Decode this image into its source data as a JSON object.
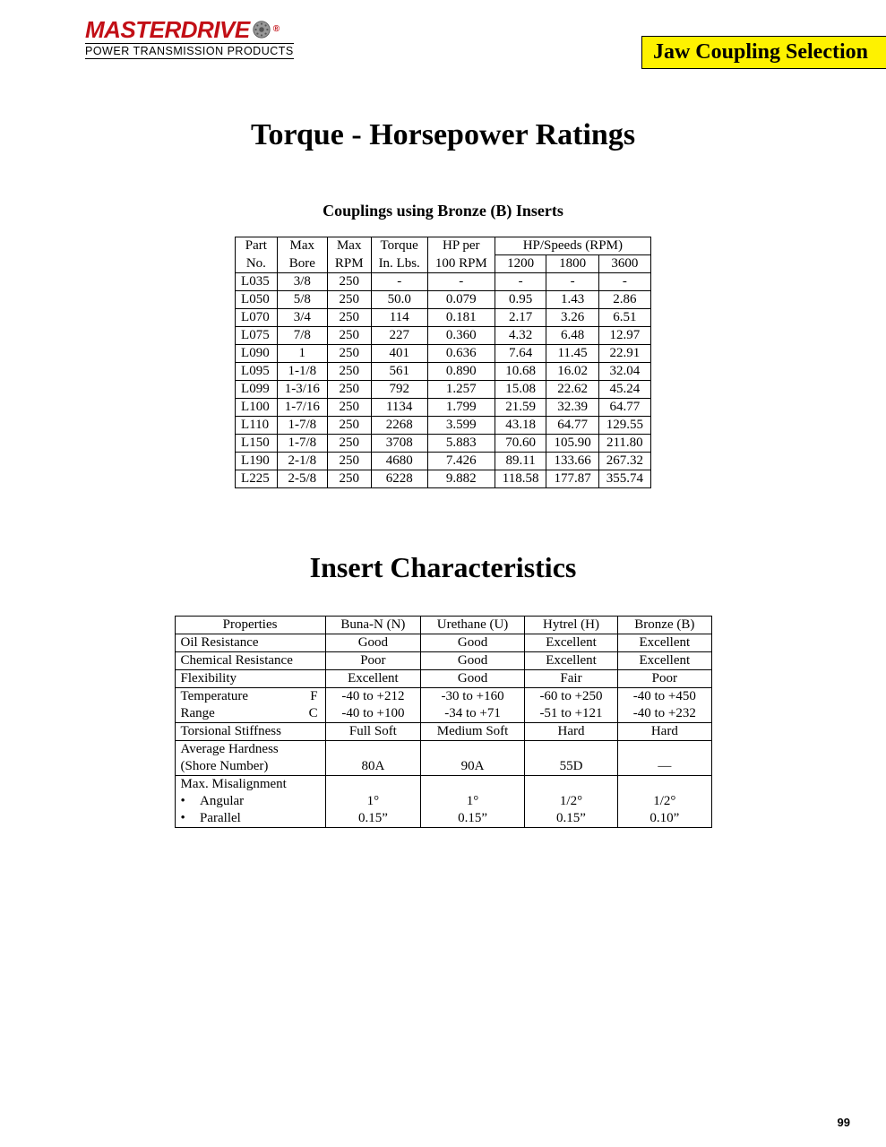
{
  "logo": {
    "brand": "MASTERDRIVE",
    "reg": "®",
    "tagline": "POWER TRANSMISSION PRODUCTS"
  },
  "title_bar": "Jaw Coupling Selection",
  "main_title": "Torque - Horsepower Ratings",
  "subtitle": "Couplings using Bronze (B) Inserts",
  "ratings": {
    "headers_top": [
      "Part",
      "Max",
      "Max",
      "Torque",
      "HP per",
      "HP/Speeds (RPM)"
    ],
    "headers_bot": [
      "No.",
      "Bore",
      "RPM",
      "In. Lbs.",
      "100 RPM",
      "1200",
      "1800",
      "3600"
    ],
    "rows": [
      [
        "L035",
        "3/8",
        "250",
        "-",
        "-",
        "-",
        "-",
        "-"
      ],
      [
        "L050",
        "5/8",
        "250",
        "50.0",
        "0.079",
        "0.95",
        "1.43",
        "2.86"
      ],
      [
        "L070",
        "3/4",
        "250",
        "114",
        "0.181",
        "2.17",
        "3.26",
        "6.51"
      ],
      [
        "L075",
        "7/8",
        "250",
        "227",
        "0.360",
        "4.32",
        "6.48",
        "12.97"
      ],
      [
        "L090",
        "1",
        "250",
        "401",
        "0.636",
        "7.64",
        "11.45",
        "22.91"
      ],
      [
        "L095",
        "1-1/8",
        "250",
        "561",
        "0.890",
        "10.68",
        "16.02",
        "32.04"
      ],
      [
        "L099",
        "1-3/16",
        "250",
        "792",
        "1.257",
        "15.08",
        "22.62",
        "45.24"
      ],
      [
        "L100",
        "1-7/16",
        "250",
        "1134",
        "1.799",
        "21.59",
        "32.39",
        "64.77"
      ],
      [
        "L110",
        "1-7/8",
        "250",
        "2268",
        "3.599",
        "43.18",
        "64.77",
        "129.55"
      ],
      [
        "L150",
        "1-7/8",
        "250",
        "3708",
        "5.883",
        "70.60",
        "105.90",
        "211.80"
      ],
      [
        "L190",
        "2-1/8",
        "250",
        "4680",
        "7.426",
        "89.11",
        "133.66",
        "267.32"
      ],
      [
        "L225",
        "2-5/8",
        "250",
        "6228",
        "9.882",
        "118.58",
        "177.87",
        "355.74"
      ]
    ]
  },
  "section_title": "Insert Characteristics",
  "chars": {
    "headers": [
      "Properties",
      "Buna-N (N)",
      "Urethane (U)",
      "Hytrel (H)",
      "Bronze (B)"
    ],
    "oil": [
      "Oil Resistance",
      "Good",
      "Good",
      "Excellent",
      "Excellent"
    ],
    "chem": [
      "Chemical Resistance",
      "Poor",
      "Good",
      "Excellent",
      "Excellent"
    ],
    "flex": [
      "Flexibility",
      "Excellent",
      "Good",
      "Fair",
      "Poor"
    ],
    "tempF_label_a": "Temperature",
    "tempF_label_b": "F",
    "tempF": [
      "-40 to +212",
      "-30 to +160",
      "-60 to +250",
      "-40 to +450"
    ],
    "tempC_label_a": "Range",
    "tempC_label_b": "C",
    "tempC": [
      "-40 to +100",
      "-34 to +71",
      "-51 to +121",
      "-40 to +232"
    ],
    "tors": [
      "Torsional Stiffness",
      "Full Soft",
      "Medium Soft",
      "Hard",
      "Hard"
    ],
    "hard_label1": "Average Hardness",
    "hard_label2": "(Shore Number)",
    "hard": [
      "80A",
      "90A",
      "55D",
      "—"
    ],
    "mis_label": "Max. Misalignment",
    "angular_label": "Angular",
    "angular": [
      "1°",
      "1°",
      "1/2°",
      "1/2°"
    ],
    "parallel_label": "Parallel",
    "parallel": [
      "0.15”",
      "0.15”",
      "0.15”",
      "0.10”"
    ]
  },
  "page_num": "99",
  "colors": {
    "brand_red": "#c20f16",
    "title_yellow": "#fef200",
    "black": "#000000",
    "white": "#ffffff"
  }
}
